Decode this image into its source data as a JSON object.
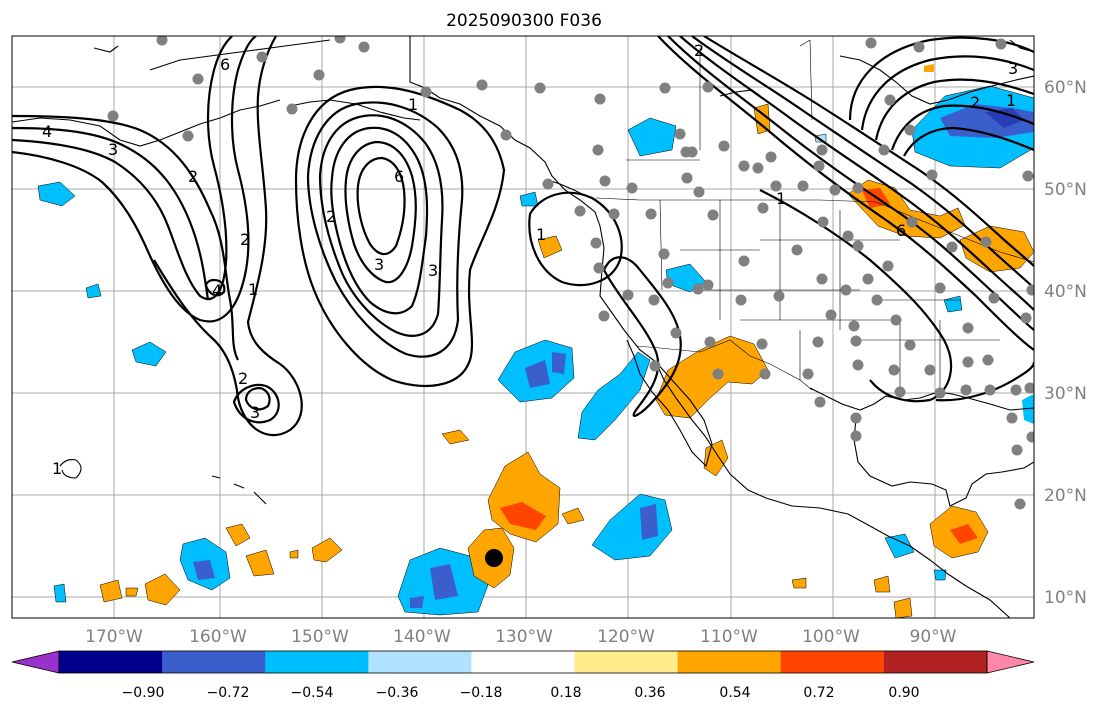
{
  "title": "2025090300 F036",
  "longitude_labels": [
    "170°W",
    "160°W",
    "150°W",
    "140°W",
    "130°W",
    "120°W",
    "110°W",
    "100°W",
    "90°W"
  ],
  "latitude_labels": [
    "60°N",
    "50°N",
    "40°N",
    "30°N",
    "20°N",
    "10°N"
  ],
  "contour_labels": [
    "4",
    "3",
    "2",
    "1",
    "1",
    "2",
    "3",
    "4",
    "6",
    "1",
    "2",
    "3",
    "1",
    "6",
    "2",
    "1",
    "3",
    "2",
    "1",
    "6",
    "2",
    "1",
    "3"
  ],
  "colorbar": {
    "ticks": [
      "−0.90",
      "−0.72",
      "−0.54",
      "−0.36",
      "−0.18",
      "0.18",
      "0.36",
      "0.54",
      "0.72",
      "0.90"
    ],
    "colors": [
      "#9932cc",
      "#00008b",
      "#3a5fcd",
      "#00bfff",
      "#b0e2ff",
      "#ffffff",
      "#ffec8b",
      "#ffa500",
      "#ff4500",
      "#b22222",
      "#ff88aa"
    ]
  },
  "colors": {
    "grid": "#a8a8a8",
    "axis_label": "#808080",
    "station": "#808080",
    "marker": "#000000"
  }
}
